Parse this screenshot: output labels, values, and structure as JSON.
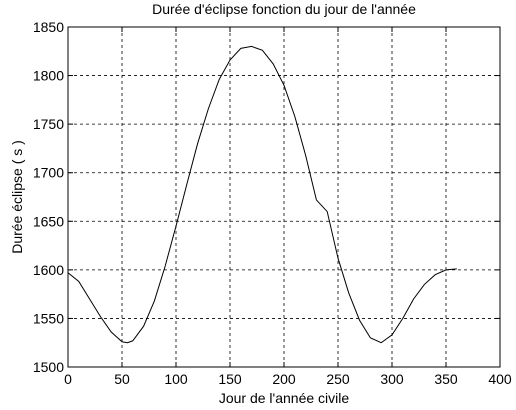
{
  "chart_data": {
    "type": "line",
    "title": "Durée d'éclipse fonction du jour de l'année",
    "x_label": "Jour de l'année civile",
    "y_label": "Durée éclipse ( s )",
    "x": [
      0,
      10,
      20,
      30,
      40,
      50,
      55,
      60,
      70,
      80,
      90,
      100,
      110,
      120,
      130,
      140,
      150,
      160,
      170,
      180,
      190,
      200,
      210,
      220,
      230,
      240,
      250,
      260,
      270,
      280,
      290,
      300,
      310,
      320,
      330,
      340,
      350,
      360
    ],
    "series": [
      {
        "name": "Durée éclipse",
        "color": "#000000",
        "values": [
          1597,
          1588,
          1570,
          1552,
          1536,
          1526,
          1525,
          1527,
          1542,
          1568,
          1604,
          1645,
          1688,
          1730,
          1766,
          1796,
          1816,
          1828,
          1830,
          1826,
          1812,
          1790,
          1758,
          1718,
          1672,
          1660,
          1612,
          1576,
          1548,
          1530,
          1525,
          1533,
          1550,
          1570,
          1585,
          1595,
          1600,
          1601
        ]
      }
    ],
    "xlim": [
      0,
      400
    ],
    "xticks": [
      0,
      50,
      100,
      150,
      200,
      250,
      300,
      350,
      400
    ],
    "ylim": [
      1500,
      1850
    ],
    "yticks": [
      1500,
      1550,
      1600,
      1650,
      1700,
      1750,
      1800,
      1850
    ],
    "grid": true
  }
}
